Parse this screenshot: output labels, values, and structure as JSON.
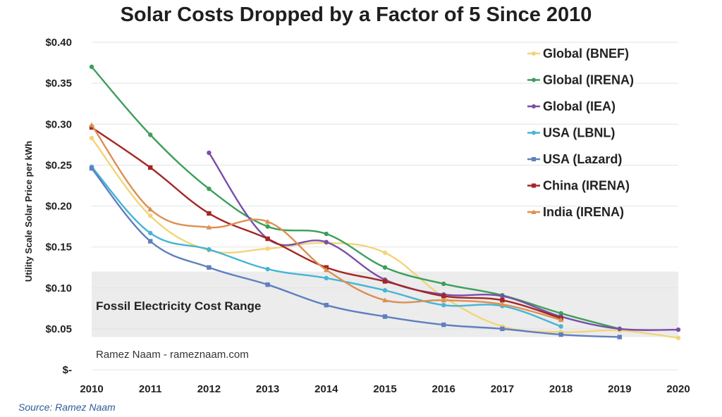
{
  "chart_data": {
    "type": "line",
    "title": "Solar Costs Dropped by a Factor of 5 Since 2010",
    "ylabel": "Utility Scale Solar Price per kWh",
    "xlabel": "",
    "x": [
      2010,
      2011,
      2012,
      2013,
      2014,
      2015,
      2016,
      2017,
      2018,
      2019,
      2020
    ],
    "x_tick_labels": [
      "2010",
      "2011",
      "2012",
      "2013",
      "2014",
      "2015",
      "2016",
      "2017",
      "2018",
      "2019",
      "2020"
    ],
    "ylim": [
      0,
      0.4
    ],
    "y_ticks": [
      0,
      0.05,
      0.1,
      0.15,
      0.2,
      0.25,
      0.3,
      0.35,
      0.4
    ],
    "y_tick_labels": [
      "$-",
      "$0.05",
      "$0.10",
      "$0.15",
      "$0.20",
      "$0.25",
      "$0.30",
      "$0.35",
      "$0.40"
    ],
    "grid": true,
    "legend_position": "top-right",
    "band": {
      "label": "Fossil Electricity Cost Range",
      "range": [
        0.04,
        0.12
      ],
      "color": "#ececec"
    },
    "annotation": "Ramez Naam - rameznaam.com",
    "series": [
      {
        "name": "Global (BNEF)",
        "color": "#f1d57a",
        "marker": "circle",
        "values": [
          0.283,
          0.188,
          0.146,
          0.148,
          0.155,
          0.143,
          0.089,
          0.053,
          0.046,
          0.048,
          0.039
        ]
      },
      {
        "name": "Global (IRENA)",
        "color": "#3d9e5b",
        "marker": "circle",
        "values": [
          0.37,
          0.287,
          0.221,
          0.175,
          0.166,
          0.125,
          0.105,
          0.091,
          0.069,
          0.05,
          null
        ]
      },
      {
        "name": "Global (IEA)",
        "color": "#7a4ea8",
        "marker": "circle",
        "values": [
          null,
          null,
          0.265,
          0.16,
          0.156,
          0.11,
          0.092,
          0.09,
          0.065,
          0.05,
          0.049
        ]
      },
      {
        "name": "USA (LBNL)",
        "color": "#46b4d6",
        "marker": "circle",
        "values": [
          0.248,
          0.167,
          0.147,
          0.123,
          0.112,
          0.097,
          0.079,
          0.078,
          0.053,
          null,
          null
        ]
      },
      {
        "name": "USA (Lazard)",
        "color": "#5f7fbf",
        "marker": "square",
        "values": [
          0.246,
          0.157,
          0.125,
          0.104,
          0.079,
          0.065,
          0.055,
          0.05,
          0.043,
          0.04,
          null
        ]
      },
      {
        "name": "China (IRENA)",
        "color": "#a32623",
        "marker": "square",
        "values": [
          0.296,
          0.247,
          0.191,
          0.16,
          0.125,
          0.108,
          0.09,
          0.085,
          0.063,
          null,
          null
        ]
      },
      {
        "name": "India (IRENA)",
        "color": "#dd8f52",
        "marker": "triangle",
        "values": [
          0.299,
          0.196,
          0.174,
          0.181,
          0.122,
          0.085,
          0.085,
          0.08,
          0.061,
          null,
          null
        ]
      }
    ]
  },
  "source_note": "Source: Ramez Naam"
}
